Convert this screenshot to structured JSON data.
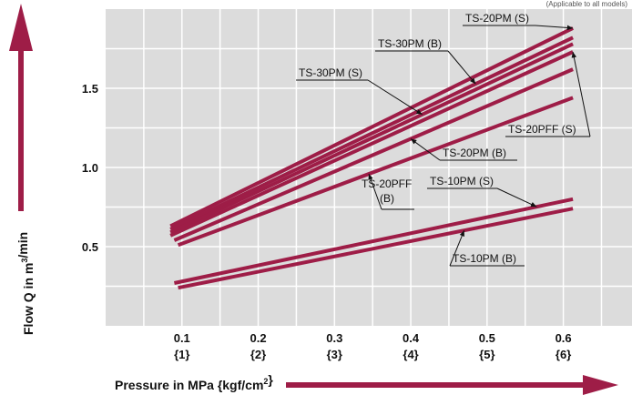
{
  "chart_data": {
    "type": "line",
    "corner_note": "(Applicable to all models)",
    "xlabel": "Pressure in MPa {kgf/cm²}",
    "ylabel": "Flow Q in m³/min",
    "x_ticks": [
      {
        "value": 0.1,
        "label": "0.1",
        "sublabel": "{1}"
      },
      {
        "value": 0.2,
        "label": "0.2",
        "sublabel": "{2}"
      },
      {
        "value": 0.3,
        "label": "0.3",
        "sublabel": "{3}"
      },
      {
        "value": 0.4,
        "label": "0.4",
        "sublabel": "{4}"
      },
      {
        "value": 0.5,
        "label": "0.5",
        "sublabel": "{5}"
      },
      {
        "value": 0.6,
        "label": "0.6",
        "sublabel": "{6}"
      }
    ],
    "y_ticks": [
      {
        "value": 0.5,
        "label": "0.5"
      },
      {
        "value": 1.0,
        "label": "1.0"
      },
      {
        "value": 1.5,
        "label": "1.5"
      }
    ],
    "xlim": [
      0.0,
      0.69
    ],
    "ylim": [
      0.0,
      2.0
    ],
    "grid": true,
    "series": [
      {
        "name": "TS-20PM (S)",
        "x": [
          0.085,
          0.6125
        ],
        "y": [
          0.63,
          1.88
        ]
      },
      {
        "name": "TS-30PM (B)",
        "x": [
          0.085,
          0.6125
        ],
        "y": [
          0.61,
          1.82
        ]
      },
      {
        "name": "TS-30PM (S)",
        "x": [
          0.085,
          0.6125
        ],
        "y": [
          0.59,
          1.78
        ]
      },
      {
        "name": "TS-20PFF (S)",
        "x": [
          0.085,
          0.6125
        ],
        "y": [
          0.57,
          1.73
        ]
      },
      {
        "name": "TS-20PM (B)",
        "x": [
          0.09,
          0.6125
        ],
        "y": [
          0.54,
          1.62
        ]
      },
      {
        "name": "TS-20PFF (B)",
        "x": [
          0.095,
          0.6125
        ],
        "y": [
          0.51,
          1.44
        ]
      },
      {
        "name": "TS-10PM (S)",
        "x": [
          0.09,
          0.6125
        ],
        "y": [
          0.27,
          0.8
        ]
      },
      {
        "name": "TS-10PM (B)",
        "x": [
          0.095,
          0.6125
        ],
        "y": [
          0.24,
          0.74
        ]
      }
    ],
    "labels": [
      {
        "series": "TS-20PM (S)",
        "text": "TS-20PM (S)"
      },
      {
        "series": "TS-30PM (B)",
        "text": "TS-30PM (B)"
      },
      {
        "series": "TS-30PM (S)",
        "text": "TS-30PM (S)"
      },
      {
        "series": "TS-20PFF (S)",
        "text": "TS-20PFF (S)"
      },
      {
        "series": "TS-20PM (B)",
        "text": "TS-20PM (B)"
      },
      {
        "series": "TS-20PFF (B)",
        "text": "TS-20PFF",
        "text2": "(B)"
      },
      {
        "series": "TS-10PM (S)",
        "text": "TS-10PM (S)"
      },
      {
        "series": "TS-10PM (B)",
        "text": "TS-10PM (B)"
      }
    ],
    "colors": {
      "line": "#9e1d47",
      "plot_bg": "#dcdcdc",
      "grid": "#ffffff",
      "arrow": "#9e1d47"
    }
  }
}
